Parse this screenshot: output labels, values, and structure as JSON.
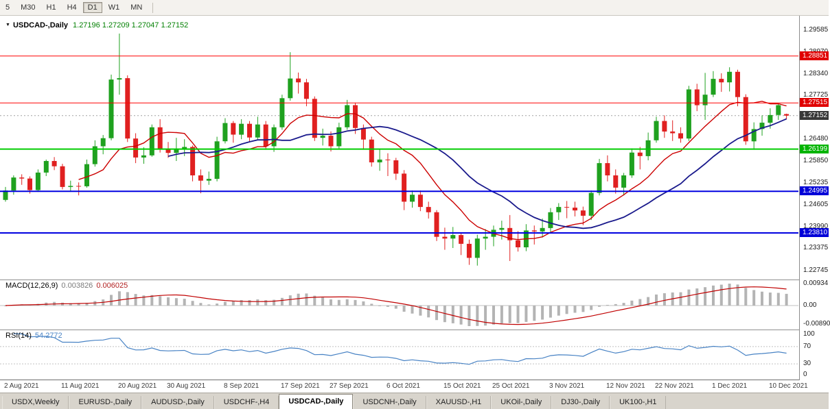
{
  "colors": {
    "candle_up": "#1FA11F",
    "candle_down": "#E02020",
    "macd_hist": "#B4B4B4",
    "macd_signal": "#C00000",
    "rsi_line": "#4782C4",
    "level_red": "#FF0000",
    "level_green": "#00CC00",
    "level_blue": "#0000E0",
    "bid_label_bg": "#383838"
  },
  "toolbar": {
    "timeframes": [
      {
        "label": "5",
        "active": false
      },
      {
        "label": "M30",
        "active": false
      },
      {
        "label": "H1",
        "active": false
      },
      {
        "label": "H4",
        "active": false
      },
      {
        "label": "D1",
        "active": true
      },
      {
        "label": "W1",
        "active": false
      },
      {
        "label": "MN",
        "active": false
      }
    ]
  },
  "chart": {
    "title": "USDCAD-,Daily",
    "ohlc_text": "1.27196 1.27209 1.27047 1.27152"
  },
  "indicators": {
    "macd": {
      "label": "MACD(12,26,9)",
      "value_main": "0.003826",
      "value_signal": "0.006025",
      "axis": [
        "0.00934",
        "0.00",
        "-0.00890"
      ]
    },
    "rsi": {
      "label": "RSI(14)",
      "value": "54.2772",
      "axis": [
        "100",
        "70",
        "30",
        "0"
      ]
    }
  },
  "tabs": [
    {
      "label": "USDX,Weekly",
      "active": false
    },
    {
      "label": "EURUSD-,Daily",
      "active": false
    },
    {
      "label": "AUDUSD-,Daily",
      "active": false
    },
    {
      "label": "USDCHF-,H4",
      "active": false
    },
    {
      "label": "USDCAD-,Daily",
      "active": true
    },
    {
      "label": "USDCNH-,Daily",
      "active": false
    },
    {
      "label": "XAUUSD-,H1",
      "active": false
    },
    {
      "label": "UKOil-,Daily",
      "active": false
    },
    {
      "label": "DJ30-,Daily",
      "active": false
    },
    {
      "label": "UK100-,H1",
      "active": false
    }
  ],
  "chart_data": {
    "type": "candlestick",
    "symbol": "USDCAD-",
    "timeframe": "Daily",
    "title": "USDCAD-,Daily",
    "ohlc_current": {
      "open": 1.27196,
      "high": 1.27209,
      "low": 1.27047,
      "close": 1.27152
    },
    "y_range": [
      1.226,
      1.299
    ],
    "y_ticks": [
      {
        "v": 1.29585,
        "label": "1.29585"
      },
      {
        "v": 1.2897,
        "label": "1.28970"
      },
      {
        "v": 1.2834,
        "label": "1.28340"
      },
      {
        "v": 1.27725,
        "label": "1.27725"
      },
      {
        "v": 1.2648,
        "label": "1.26480"
      },
      {
        "v": 1.2585,
        "label": "1.25850"
      },
      {
        "v": 1.25235,
        "label": "1.25235"
      },
      {
        "v": 1.24605,
        "label": "1.24605"
      },
      {
        "v": 1.2399,
        "label": "1.23990"
      },
      {
        "v": 1.23375,
        "label": "1.23375"
      },
      {
        "v": 1.22745,
        "label": "1.22745"
      }
    ],
    "levels": [
      {
        "price": 1.28851,
        "label": "1.28851",
        "color": "#FF0000",
        "line_width": 1,
        "label_bg": "#E00000"
      },
      {
        "price": 1.27515,
        "label": "1.27515",
        "color": "#FF0000",
        "line_width": 1,
        "label_bg": "#E00000"
      },
      {
        "price": 1.26199,
        "label": "1.26199",
        "color": "#00CC00",
        "line_width": 2,
        "label_bg": "#00B400"
      },
      {
        "price": 1.24995,
        "label": "1.24995",
        "color": "#0000E0",
        "line_width": 2,
        "label_bg": "#0000D8"
      },
      {
        "price": 1.2381,
        "label": "1.23810",
        "color": "#0000E0",
        "line_width": 2,
        "label_bg": "#0000D8"
      }
    ],
    "current_price": {
      "price": 1.27152,
      "label": "1.27152",
      "label_bg": "#383838"
    },
    "x_labels": [
      {
        "i": 0,
        "label": "2 Aug 2021"
      },
      {
        "i": 7,
        "label": "11 Aug 2021"
      },
      {
        "i": 14,
        "label": "20 Aug 2021"
      },
      {
        "i": 20,
        "label": "30 Aug 2021"
      },
      {
        "i": 27,
        "label": "8 Sep 2021"
      },
      {
        "i": 34,
        "label": "17 Sep 2021"
      },
      {
        "i": 40,
        "label": "27 Sep 2021"
      },
      {
        "i": 47,
        "label": "6 Oct 2021"
      },
      {
        "i": 54,
        "label": "15 Oct 2021"
      },
      {
        "i": 60,
        "label": "25 Oct 2021"
      },
      {
        "i": 67,
        "label": "3 Nov 2021"
      },
      {
        "i": 74,
        "label": "12 Nov 2021"
      },
      {
        "i": 80,
        "label": "22 Nov 2021"
      },
      {
        "i": 87,
        "label": "1 Dec 2021"
      },
      {
        "i": 94,
        "label": "10 Dec 2021"
      }
    ],
    "overlays": [
      {
        "name": "ma-fast-red",
        "type": "sma",
        "period": 10,
        "color": "#CC0000",
        "width": 1.4
      },
      {
        "name": "ma-slow-blue",
        "type": "sma",
        "period": 21,
        "color": "#1A1A8C",
        "width": 1.8
      }
    ],
    "candles": [
      [
        1.2475,
        1.2512,
        1.247,
        1.2502
      ],
      [
        1.2502,
        1.2545,
        1.249,
        1.2539
      ],
      [
        1.2539,
        1.2548,
        1.2518,
        1.2536
      ],
      [
        1.2536,
        1.2542,
        1.2493,
        1.2503
      ],
      [
        1.2503,
        1.2562,
        1.2498,
        1.2553
      ],
      [
        1.2553,
        1.259,
        1.2543,
        1.2586
      ],
      [
        1.2586,
        1.2597,
        1.256,
        1.2571
      ],
      [
        1.2571,
        1.2578,
        1.2505,
        1.2512
      ],
      [
        1.2512,
        1.253,
        1.2498,
        1.2515
      ],
      [
        1.2515,
        1.2525,
        1.2488,
        1.2514
      ],
      [
        1.2514,
        1.259,
        1.251,
        1.2577
      ],
      [
        1.2577,
        1.2645,
        1.257,
        1.2628
      ],
      [
        1.2628,
        1.266,
        1.2605,
        1.2651
      ],
      [
        1.2651,
        1.2832,
        1.2645,
        1.2818
      ],
      [
        1.2818,
        1.2949,
        1.2775,
        1.2822
      ],
      [
        1.2822,
        1.283,
        1.264,
        1.265
      ],
      [
        1.265,
        1.2665,
        1.258,
        1.2596
      ],
      [
        1.2596,
        1.2625,
        1.2578,
        1.2602
      ],
      [
        1.2602,
        1.269,
        1.2598,
        1.2682
      ],
      [
        1.2682,
        1.2705,
        1.261,
        1.262
      ],
      [
        1.262,
        1.264,
        1.2595,
        1.2609
      ],
      [
        1.2609,
        1.2652,
        1.2586,
        1.262
      ],
      [
        1.262,
        1.2648,
        1.26,
        1.2626
      ],
      [
        1.2626,
        1.263,
        1.2528,
        1.2545
      ],
      [
        1.2545,
        1.2562,
        1.2494,
        1.253
      ],
      [
        1.253,
        1.2556,
        1.2518,
        1.2535
      ],
      [
        1.2535,
        1.2655,
        1.2528,
        1.2642
      ],
      [
        1.2642,
        1.2708,
        1.2636,
        1.2694
      ],
      [
        1.2694,
        1.27,
        1.2638,
        1.2661
      ],
      [
        1.2661,
        1.2705,
        1.2648,
        1.2692
      ],
      [
        1.2692,
        1.27,
        1.264,
        1.2653
      ],
      [
        1.2653,
        1.2712,
        1.2645,
        1.269
      ],
      [
        1.269,
        1.27,
        1.2618,
        1.2628
      ],
      [
        1.2628,
        1.269,
        1.2612,
        1.2682
      ],
      [
        1.2682,
        1.2775,
        1.2675,
        1.2765
      ],
      [
        1.2765,
        1.2896,
        1.2758,
        1.2821
      ],
      [
        1.2821,
        1.2838,
        1.2778,
        1.281
      ],
      [
        1.281,
        1.282,
        1.2742,
        1.2763
      ],
      [
        1.2763,
        1.277,
        1.2643,
        1.2652
      ],
      [
        1.2652,
        1.2678,
        1.263,
        1.2658
      ],
      [
        1.2658,
        1.267,
        1.2613,
        1.2628
      ],
      [
        1.2628,
        1.2695,
        1.262,
        1.2682
      ],
      [
        1.2682,
        1.276,
        1.2675,
        1.2745
      ],
      [
        1.2745,
        1.2752,
        1.2663,
        1.268
      ],
      [
        1.268,
        1.269,
        1.2618,
        1.2647
      ],
      [
        1.2647,
        1.2655,
        1.257,
        1.2582
      ],
      [
        1.2582,
        1.262,
        1.2558,
        1.259
      ],
      [
        1.259,
        1.2608,
        1.2543,
        1.2588
      ],
      [
        1.2588,
        1.2595,
        1.2532,
        1.255
      ],
      [
        1.255,
        1.256,
        1.2446,
        1.247
      ],
      [
        1.247,
        1.2502,
        1.2453,
        1.249
      ],
      [
        1.249,
        1.2502,
        1.2443,
        1.2455
      ],
      [
        1.2455,
        1.247,
        1.2422,
        1.244
      ],
      [
        1.244,
        1.2446,
        1.2358,
        1.237
      ],
      [
        1.237,
        1.2396,
        1.2333,
        1.2365
      ],
      [
        1.2365,
        1.2398,
        1.2338,
        1.2375
      ],
      [
        1.2375,
        1.2382,
        1.2318,
        1.235
      ],
      [
        1.235,
        1.2362,
        1.229,
        1.231
      ],
      [
        1.231,
        1.2376,
        1.2288,
        1.2365
      ],
      [
        1.2365,
        1.2392,
        1.2333,
        1.237
      ],
      [
        1.237,
        1.2402,
        1.2343,
        1.239
      ],
      [
        1.239,
        1.2416,
        1.2362,
        1.2395
      ],
      [
        1.2395,
        1.2432,
        1.2301,
        1.236
      ],
      [
        1.236,
        1.2386,
        1.2328,
        1.234
      ],
      [
        1.234,
        1.2406,
        1.2329,
        1.2388
      ],
      [
        1.2388,
        1.2402,
        1.2348,
        1.2385
      ],
      [
        1.2385,
        1.2422,
        1.2368,
        1.2395
      ],
      [
        1.2395,
        1.2452,
        1.2384,
        1.244
      ],
      [
        1.244,
        1.2466,
        1.2418,
        1.2455
      ],
      [
        1.2455,
        1.2472,
        1.2423,
        1.2453
      ],
      [
        1.2453,
        1.247,
        1.2428,
        1.2445
      ],
      [
        1.2445,
        1.2456,
        1.2403,
        1.243
      ],
      [
        1.243,
        1.2502,
        1.2418,
        1.2495
      ],
      [
        1.2495,
        1.2592,
        1.2488,
        1.258
      ],
      [
        1.258,
        1.2602,
        1.2528,
        1.2545
      ],
      [
        1.2545,
        1.2562,
        1.2493,
        1.251
      ],
      [
        1.251,
        1.2552,
        1.2488,
        1.2545
      ],
      [
        1.2545,
        1.2622,
        1.2538,
        1.261
      ],
      [
        1.261,
        1.2626,
        1.2562,
        1.26
      ],
      [
        1.26,
        1.2667,
        1.2588,
        1.2645
      ],
      [
        1.2645,
        1.2712,
        1.2638,
        1.27
      ],
      [
        1.27,
        1.2716,
        1.2652,
        1.267
      ],
      [
        1.267,
        1.2702,
        1.2643,
        1.2665
      ],
      [
        1.2665,
        1.2682,
        1.2638,
        1.265
      ],
      [
        1.265,
        1.28,
        1.2643,
        1.279
      ],
      [
        1.279,
        1.2806,
        1.2728,
        1.2745
      ],
      [
        1.2745,
        1.2837,
        1.2703,
        1.2775
      ],
      [
        1.2775,
        1.2842,
        1.2768,
        1.282
      ],
      [
        1.282,
        1.2836,
        1.2783,
        1.281
      ],
      [
        1.281,
        1.2853,
        1.2784,
        1.284
      ],
      [
        1.284,
        1.2846,
        1.2742,
        1.2768
      ],
      [
        1.2768,
        1.2776,
        1.2632,
        1.2642
      ],
      [
        1.2642,
        1.2696,
        1.2618,
        1.2677
      ],
      [
        1.2677,
        1.2716,
        1.2658,
        1.2695
      ],
      [
        1.2695,
        1.2736,
        1.2678,
        1.2717
      ],
      [
        1.2717,
        1.275,
        1.2703,
        1.2745
      ],
      [
        1.27196,
        1.27209,
        1.27047,
        1.27152
      ]
    ],
    "macd_panel": {
      "label": "MACD(12,26,9)",
      "main": 0.003826,
      "signal": 0.006025,
      "params": [
        12,
        26,
        9
      ]
    },
    "rsi_panel": {
      "label": "RSI(14)",
      "value": 54.2772,
      "period": 14,
      "levels": [
        70,
        30
      ]
    }
  }
}
